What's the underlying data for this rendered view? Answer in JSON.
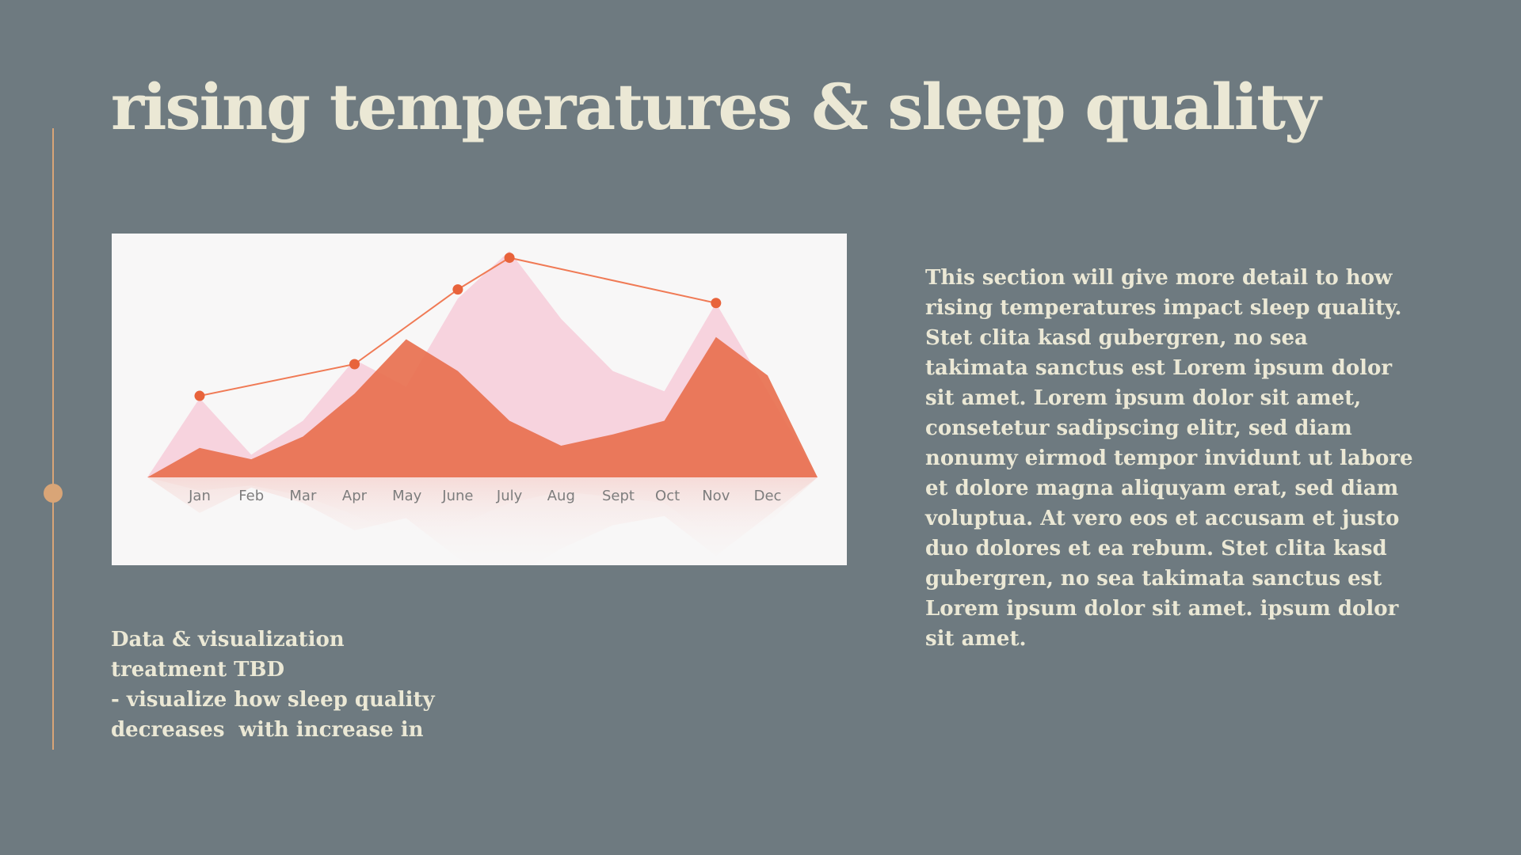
{
  "title": "rising temperatures & sleep quality",
  "description": {
    "line1": "This section will give more detail to how rising temperatures impact sleep quality.",
    "line2": "Stet clita kasd gubergren, no sea takimata sanctus est Lorem ipsum dolor sit amet. Lorem ipsum dolor sit amet, consetetur sadipscing elitr, sed diam nonumy eirmod tempor invidunt ut labore et dolore magna aliquyam erat, sed diam voluptua. At vero eos et accusam et justo duo dolores et ea rebum. Stet clita kasd gubergren, no sea takimata sanctus est Lorem ipsum dolor sit amet. ipsum dolor sit amet."
  },
  "note": {
    "lines": [
      "Data & visualization",
      "treatment TBD",
      "- visualize how sleep quality",
      "decreases  with increase in"
    ]
  },
  "colors": {
    "background": "#6e7a80",
    "title": "#ebe8d5",
    "accent": "#d9a577",
    "pink_area": "#f7d3de",
    "orange_area": "#e8704f",
    "line": "#f07a55",
    "marker": "#e8633b"
  },
  "chart_data": {
    "type": "area",
    "categories": [
      "Jan",
      "Feb",
      "Mar",
      "Apr",
      "May",
      "June",
      "July",
      "Aug",
      "Sept",
      "Oct",
      "Nov",
      "Dec"
    ],
    "ylim": [
      0,
      100
    ],
    "grid": false,
    "series": [
      {
        "kind": "area",
        "color": "#f7d3de",
        "values": [
          35,
          10,
          25,
          52,
          40,
          79,
          100,
          70,
          47,
          38,
          77,
          38
        ]
      },
      {
        "kind": "area",
        "color": "#e8704f",
        "values": [
          13,
          8,
          18,
          37,
          61,
          47,
          25,
          14,
          19,
          25,
          62,
          45
        ]
      },
      {
        "kind": "line",
        "color": "#f07a55",
        "x": [
          "Jan",
          "Apr",
          "June",
          "July",
          "Nov"
        ],
        "values": [
          36,
          50,
          83,
          97,
          77
        ]
      }
    ]
  }
}
